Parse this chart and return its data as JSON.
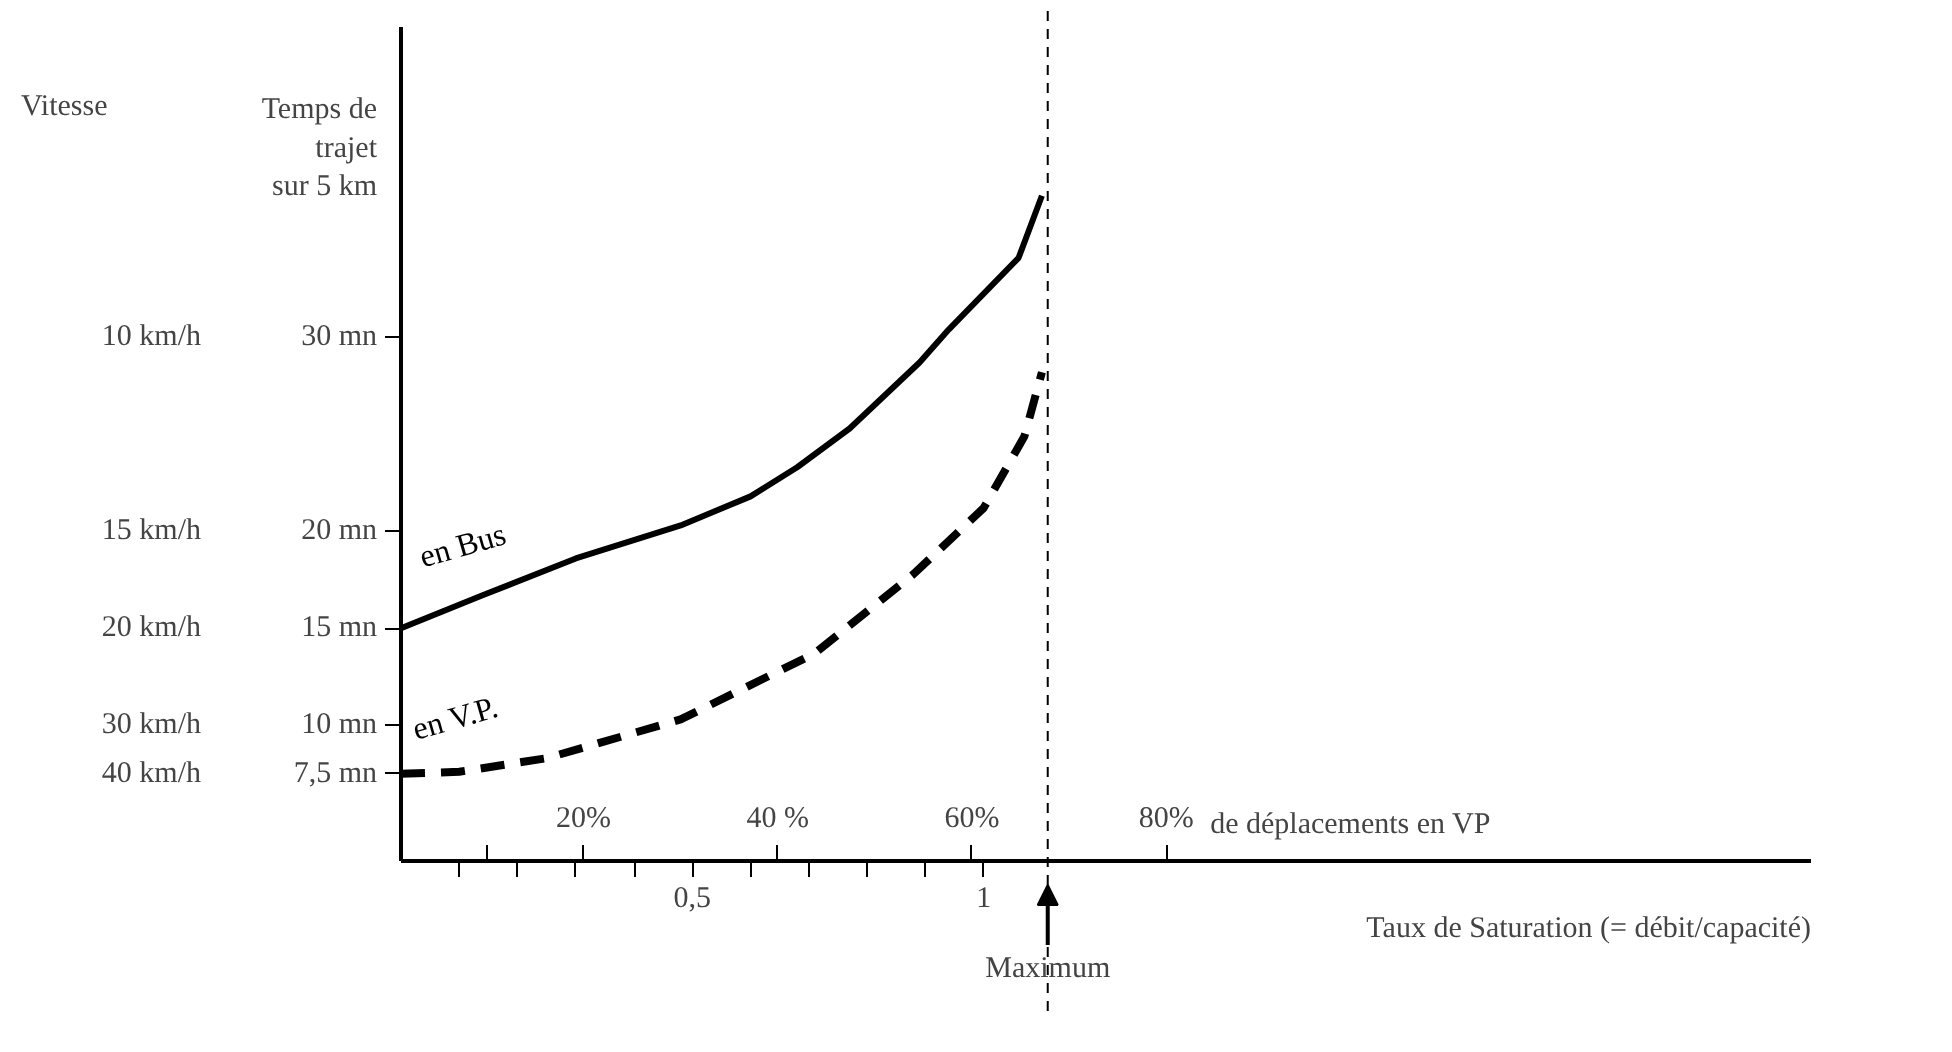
{
  "chart_data": {
    "type": "line",
    "xlabel": "Taux de Saturation (= débit/capacité)",
    "ylabel": "Temps de trajet sur 5 km",
    "x2label": "de déplacements en VP",
    "annotations": [
      "Vitesse",
      "10 km/h",
      "15 km/h",
      "20 km/h",
      "30 km/h",
      "40 km/h"
    ],
    "xlim": [
      0,
      2.42
    ],
    "ylim": [
      3,
      46
    ],
    "x2lim": [
      1.2,
      146.4
    ],
    "xticks": [
      {
        "value": 0.1,
        "label": null
      },
      {
        "value": 0.2,
        "label": null
      },
      {
        "value": 0.3,
        "label": null
      },
      {
        "value": 0.4,
        "label": null
      },
      {
        "value": 0.5,
        "label": "0,5"
      },
      {
        "value": 0.6,
        "label": null
      },
      {
        "value": 0.7,
        "label": null
      },
      {
        "value": 0.8,
        "label": null
      },
      {
        "value": 0.9,
        "label": null
      },
      1
    ],
    "x2ticks": [
      {
        "value": 10,
        "label": null
      },
      {
        "value": 20,
        "label": "20%"
      },
      {
        "value": 40,
        "label": "40 %"
      },
      {
        "value": 60,
        "label": "60%"
      },
      {
        "value": 80,
        "label": "80%"
      }
    ],
    "yticks": [
      {
        "value": 7.5,
        "label": "7,5 mn"
      },
      {
        "value": 10,
        "label": "10 mn"
      },
      {
        "value": 15,
        "label": "15 mn"
      },
      {
        "value": 20,
        "label": "20 mn"
      },
      {
        "value": 30,
        "label": "30 mn"
      }
    ],
    "series": [
      {
        "name": "en Bus",
        "color": "#000000",
        "line_style": "solid",
        "x": [
          0,
          0.14,
          0.3,
          0.48,
          0.6,
          0.68,
          0.77,
          0.89,
          0.94,
          1.06,
          1.1
        ],
        "values": [
          15,
          16.7,
          18.6,
          20.3,
          21.8,
          23.3,
          25.3,
          28.7,
          30.4,
          34.1,
          37.3
        ]
      },
      {
        "name": "en V.P.",
        "color": "#000000",
        "line_style": "dashed",
        "x": [
          0,
          0.1,
          0.25,
          0.48,
          0.71,
          0.88,
          1.0,
          1.07,
          1.1
        ],
        "values": [
          7.5,
          7.6,
          8.3,
          10.3,
          13.7,
          17.8,
          21.2,
          24.9,
          28.2
        ]
      }
    ],
    "ref_lines": [
      {
        "axis": "x",
        "value": 1.11,
        "label": "Maximum",
        "line_style": "dashed",
        "color": "#000000"
      }
    ]
  }
}
